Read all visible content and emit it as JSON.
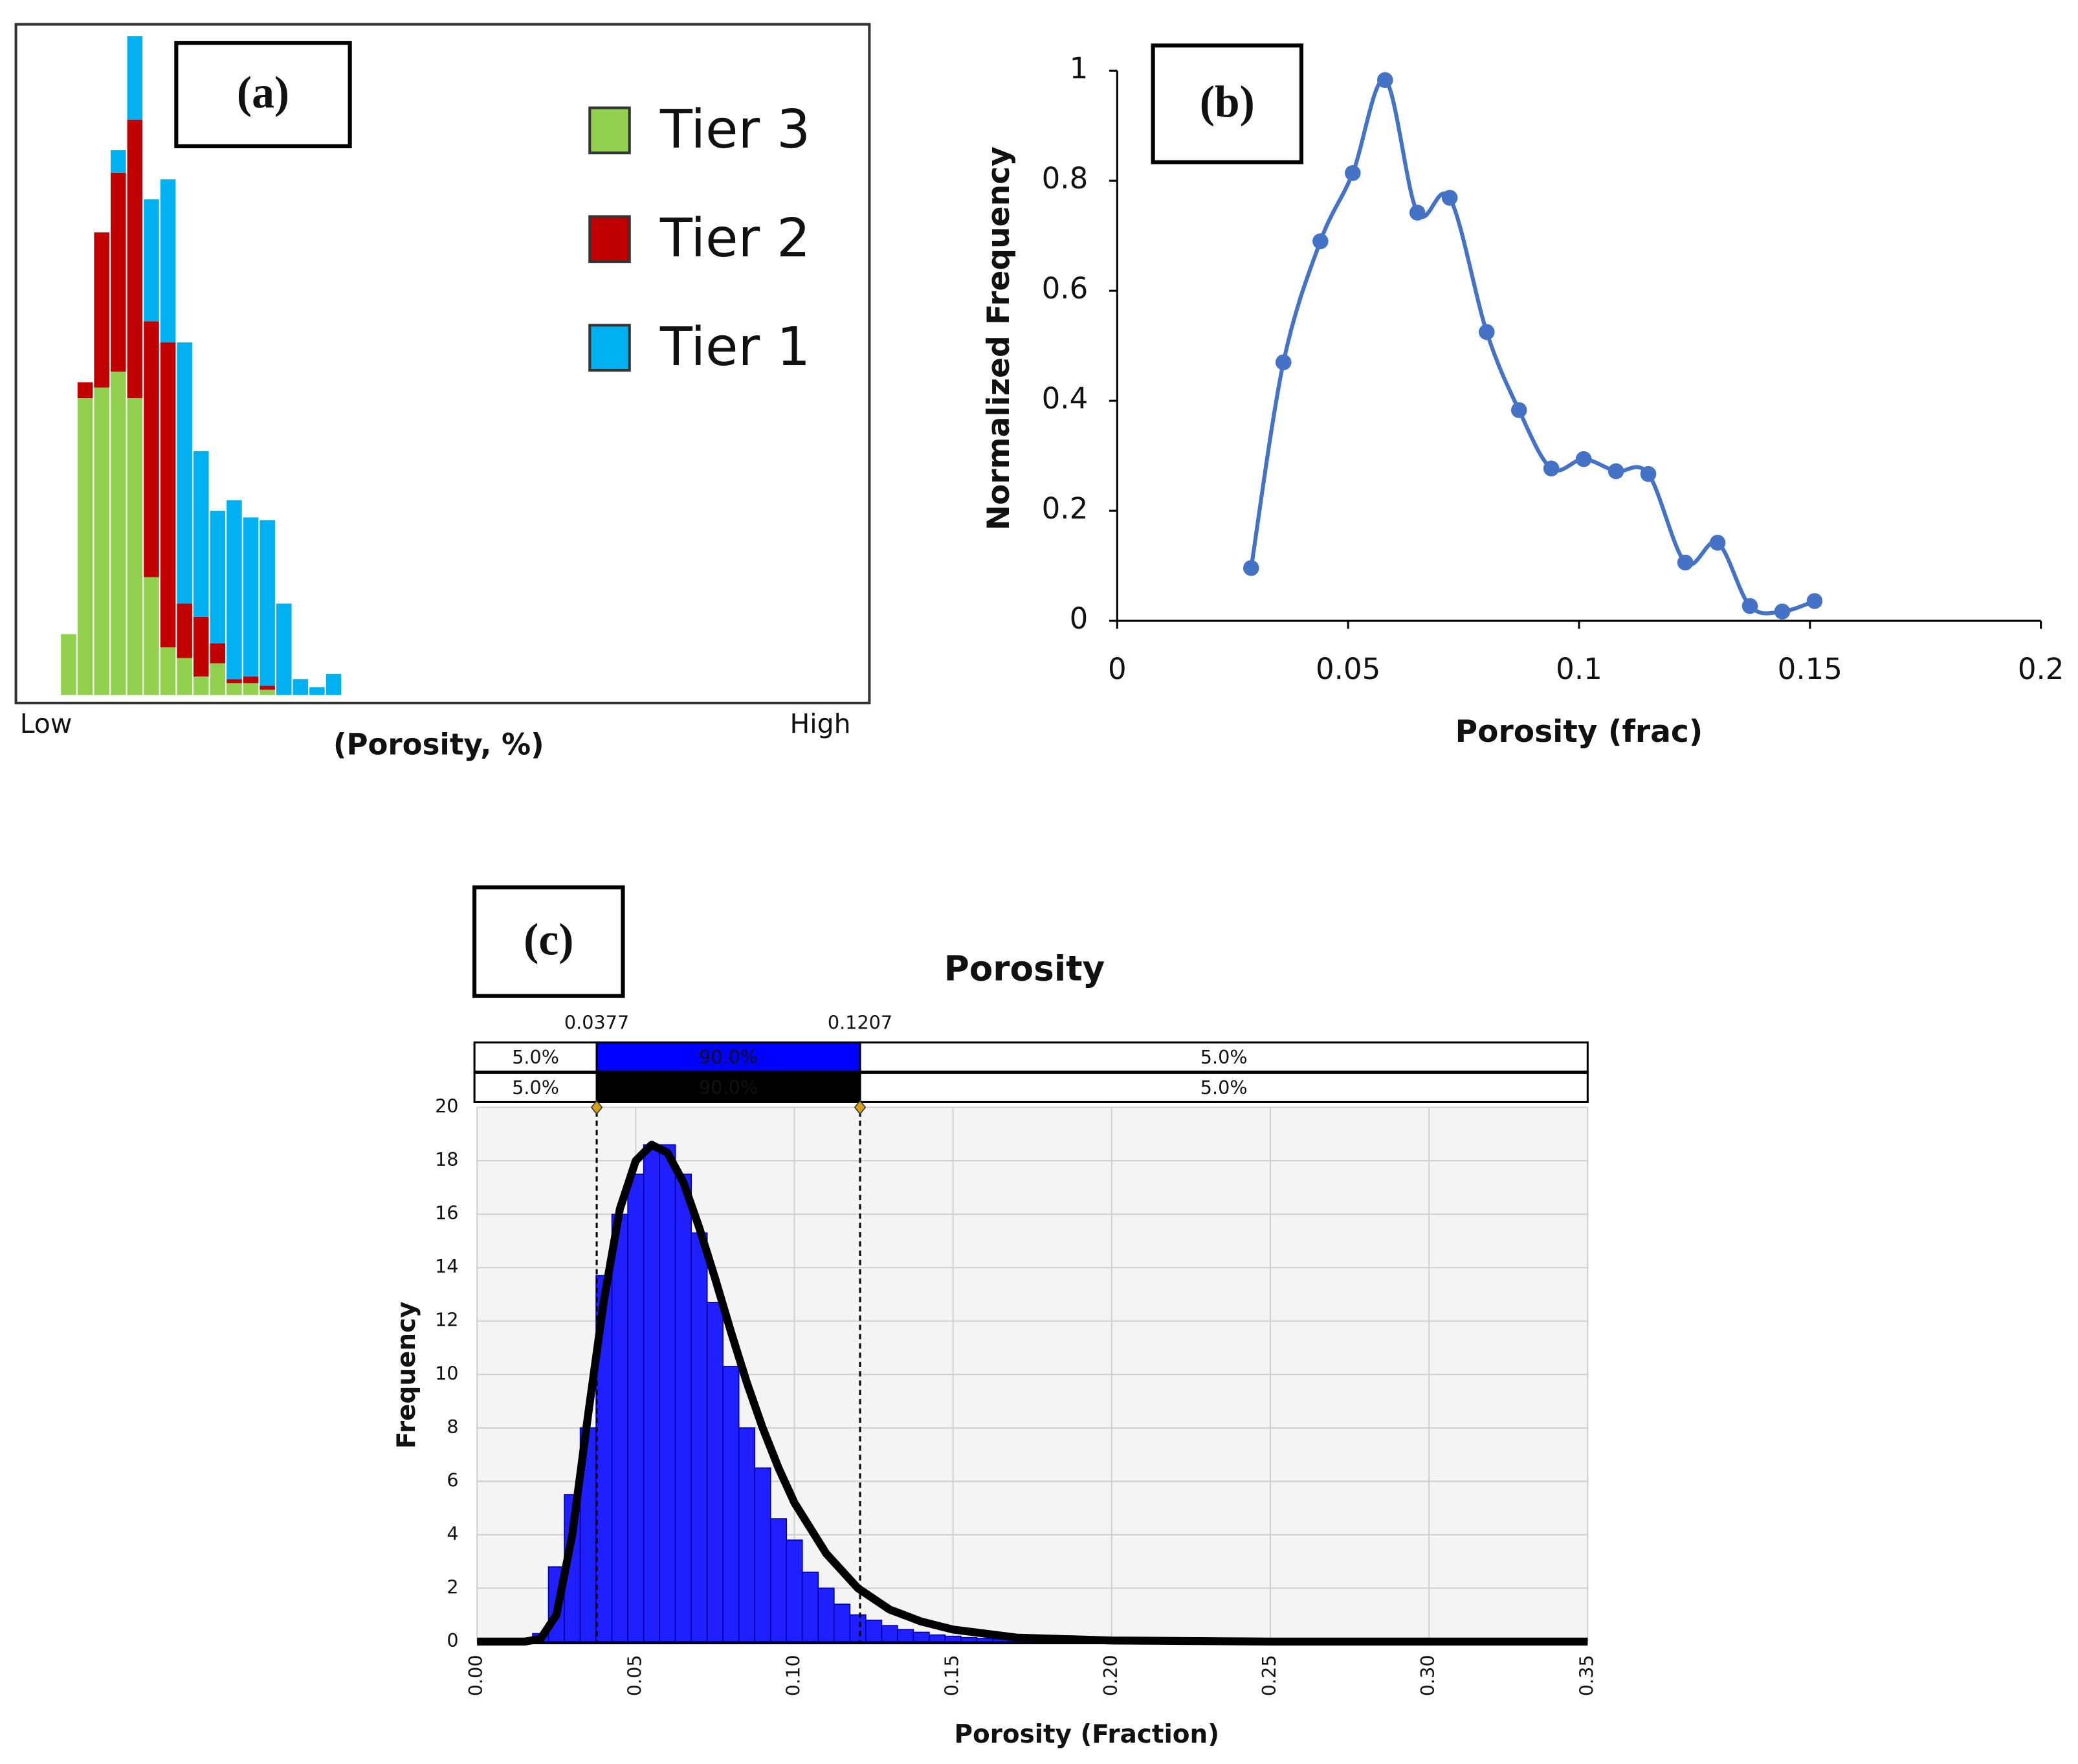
{
  "chart_data": [
    {
      "type": "stacked_bar",
      "panel_label": "(a)",
      "xlabel": "(Porosity, %)",
      "x_min_label": "Low",
      "x_max_label": "High",
      "categories": [
        null,
        null,
        null,
        null,
        null,
        null,
        null,
        null,
        null,
        null,
        null,
        null,
        null,
        null,
        null,
        null,
        null
      ],
      "ylim": [
        0,
        506
      ],
      "series": [
        {
          "name": "Tier 3",
          "color": "#92d050",
          "values": [
            46,
            224,
            232,
            244,
            224,
            89,
            36,
            28,
            14,
            24,
            9,
            9,
            4,
            0,
            0,
            0,
            0
          ]
        },
        {
          "name": "Tier 2",
          "color": "#c00000",
          "values": [
            0,
            12,
            117,
            150,
            210,
            193,
            230,
            41,
            45,
            15,
            3,
            5,
            3,
            0,
            0,
            0,
            0
          ]
        },
        {
          "name": "Tier 1",
          "color": "#00b0f0",
          "values": [
            0,
            0,
            0,
            17,
            63,
            92,
            123,
            197,
            125,
            100,
            135,
            120,
            125,
            69,
            12,
            6,
            16
          ]
        }
      ]
    },
    {
      "type": "line",
      "panel_label": "(b)",
      "xlabel": "Porosity (frac)",
      "ylabel": "Normalized Frequency",
      "xlim": [
        0,
        0.2
      ],
      "xticks": [
        0,
        0.05,
        0.1,
        0.15,
        0.2
      ],
      "ylim": [
        0,
        1
      ],
      "yticks": [
        0,
        0.2,
        0.4,
        0.6,
        0.8,
        1
      ],
      "x": [
        0.029,
        0.036,
        0.044,
        0.051,
        0.058,
        0.065,
        0.072,
        0.08,
        0.087,
        0.094,
        0.101,
        0.108,
        0.115,
        0.123,
        0.13,
        0.137,
        0.144,
        0.151
      ],
      "series": [
        {
          "color": "#4472c4",
          "values": [
            0.096,
            0.47,
            0.69,
            0.814,
            0.983,
            0.742,
            0.769,
            0.525,
            0.383,
            0.277,
            0.294,
            0.272,
            0.267,
            0.106,
            0.142,
            0.027,
            0.017,
            0.036
          ]
        }
      ]
    },
    {
      "type": "histogram",
      "panel_label": "(c)",
      "title": "Porosity",
      "xlabel": "Porosity (Fraction)",
      "ylabel": "Frequency",
      "xlim": [
        0,
        0.35
      ],
      "xticks": [
        {
          "value": 0,
          "label": "0.00"
        },
        0.05,
        {
          "value": 0.1,
          "label": "0.10"
        },
        0.15,
        {
          "value": 0.2,
          "label": "0.20"
        },
        0.25,
        {
          "value": 0.3,
          "label": "0.30"
        },
        0.35
      ],
      "ylim": [
        0,
        20
      ],
      "yticks": [
        0,
        2,
        4,
        6,
        8,
        10,
        12,
        14,
        16,
        18,
        20
      ],
      "grid": true,
      "color": "#1f1fff",
      "bins": [
        0.0175,
        0.0225,
        0.0275,
        0.0325,
        0.0375,
        0.0425,
        0.0475,
        0.0525,
        0.0575,
        0.0625,
        0.0675,
        0.0725,
        0.0775,
        0.0825,
        0.0875,
        0.0925,
        0.0975,
        0.1025,
        0.1075,
        0.1125,
        0.1175,
        0.1225,
        0.1275,
        0.1325,
        0.1375,
        0.1425,
        0.1475,
        0.1525,
        0.1575,
        0.1625,
        0.1675,
        0.1725,
        0.1775,
        0.1825,
        0.1875,
        0.1925,
        0.1975,
        0.2025,
        0.2075,
        0.2125
      ],
      "values": [
        0.3,
        2.8,
        5.5,
        8.0,
        13.7,
        16.0,
        17.5,
        18.6,
        18.6,
        17.5,
        15.3,
        12.7,
        10.3,
        8.0,
        6.5,
        4.6,
        3.8,
        2.6,
        2.0,
        1.4,
        1.0,
        0.8,
        0.6,
        0.45,
        0.35,
        0.25,
        0.2,
        0.15,
        0.12,
        0.1,
        0.08,
        0.06,
        0.05,
        0.04,
        0.03,
        0.02,
        0.02,
        0.01,
        0.01
      ],
      "curve": {
        "color": "#000000",
        "x": [
          0,
          0.015,
          0.02,
          0.025,
          0.03,
          0.035,
          0.04,
          0.045,
          0.05,
          0.055,
          0.06,
          0.065,
          0.07,
          0.075,
          0.08,
          0.085,
          0.09,
          0.095,
          0.1,
          0.11,
          0.12,
          0.13,
          0.14,
          0.15,
          0.17,
          0.2,
          0.25,
          0.35
        ],
        "values": [
          0,
          0,
          0.1,
          1.0,
          4.0,
          8.5,
          12.8,
          16.2,
          18.0,
          18.6,
          18.3,
          17.2,
          15.5,
          13.6,
          11.6,
          9.7,
          8.0,
          6.5,
          5.2,
          3.3,
          2.0,
          1.2,
          0.75,
          0.45,
          0.15,
          0.04,
          0,
          0
        ]
      },
      "markers": [
        0.0377,
        0.1207
      ],
      "percentile_rows": [
        {
          "color": "#0000ff",
          "labels": [
            "5.0%",
            "90.0%",
            "5.0%"
          ]
        },
        {
          "color": "#000000",
          "labels": [
            "5.0%",
            "90.0%",
            "5.0%"
          ]
        }
      ]
    }
  ]
}
